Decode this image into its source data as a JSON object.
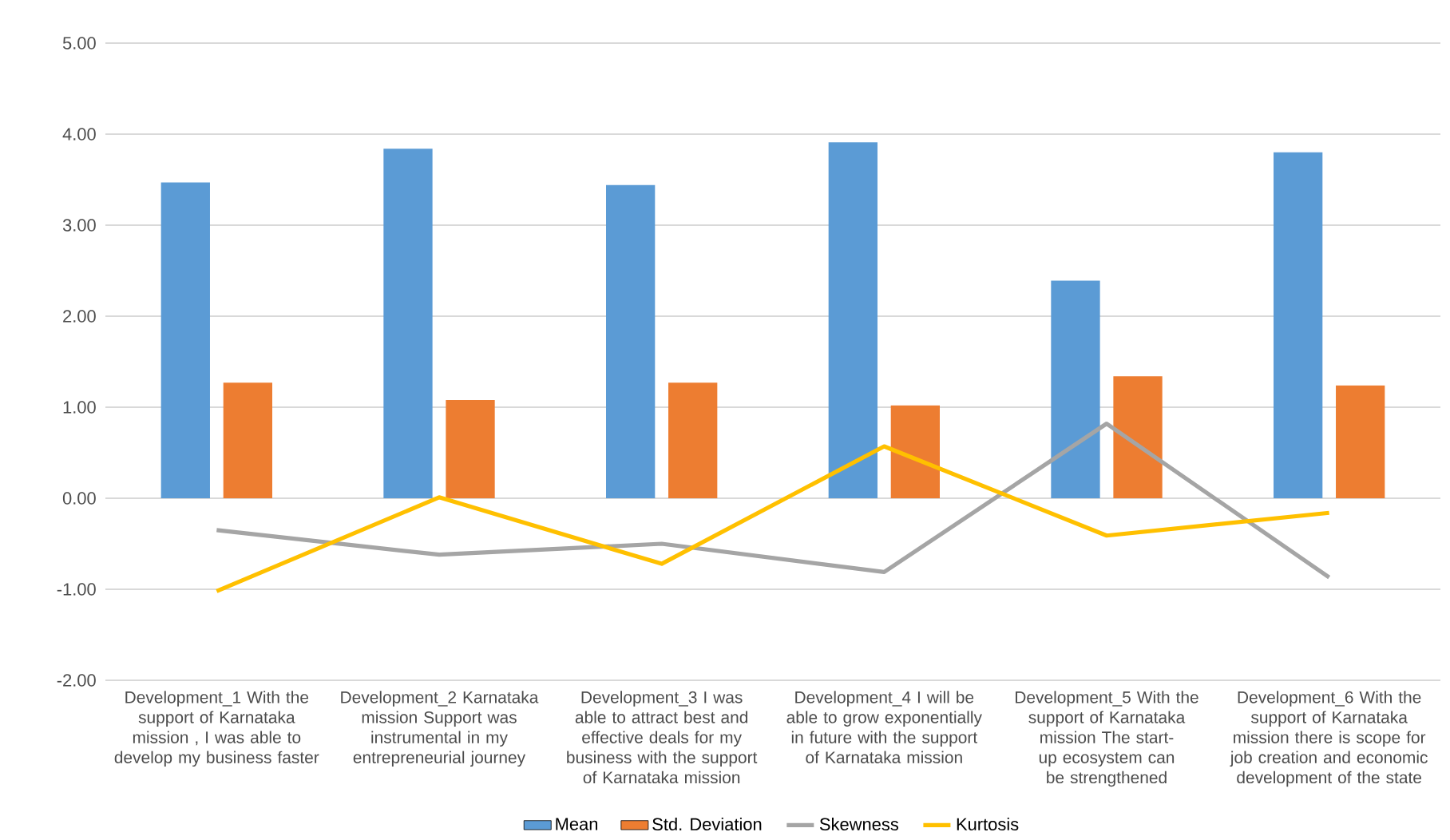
{
  "chart_data": {
    "type": "bar",
    "categories": [
      "Development_1 With the support of Karnataka mission , I was able to develop my business faster",
      "Development_2 Karnataka mission Support was instrumental in my entrepreneurial journey",
      "Development_3 I was able to attract best and effective deals for my business with the support of Karnataka mission",
      "Development_4 I will be able to grow exponentially in future with the support of Karnataka mission",
      "Development_5 With the support of Karnataka mission The start-up ecosystem can be strengthened",
      "Development_6 With the support of Karnataka mission there is scope for job creation and economic development of the state"
    ],
    "series": [
      {
        "name": "Mean",
        "type": "bar",
        "color": "#5b9bd5",
        "values": [
          3.47,
          3.84,
          3.44,
          3.91,
          2.39,
          3.8
        ]
      },
      {
        "name": "Std. Deviation",
        "type": "bar",
        "color": "#ed7d31",
        "values": [
          1.27,
          1.08,
          1.27,
          1.02,
          1.34,
          1.24
        ]
      },
      {
        "name": "Skewness",
        "type": "line",
        "color": "#a5a5a5",
        "values": [
          -0.35,
          -0.62,
          -0.5,
          -0.81,
          0.82,
          -0.87
        ]
      },
      {
        "name": "Kurtosis",
        "type": "line",
        "color": "#ffc000",
        "values": [
          -1.02,
          0.01,
          -0.72,
          0.57,
          -0.41,
          -0.16
        ]
      }
    ],
    "ylim": [
      -2,
      5
    ],
    "yticks": [
      {
        "value": -2,
        "label": "-2.00"
      },
      {
        "value": -1,
        "label": "-1.00"
      },
      {
        "value": 0,
        "label": "0.00"
      },
      {
        "value": 1,
        "label": "1.00"
      },
      {
        "value": 2,
        "label": "2.00"
      },
      {
        "value": 3,
        "label": "3.00"
      },
      {
        "value": 4,
        "label": "4.00"
      },
      {
        "value": 5,
        "label": "5.00"
      }
    ],
    "grid": "y",
    "legend": "bottom",
    "marker": "none",
    "line_style": "solid"
  }
}
